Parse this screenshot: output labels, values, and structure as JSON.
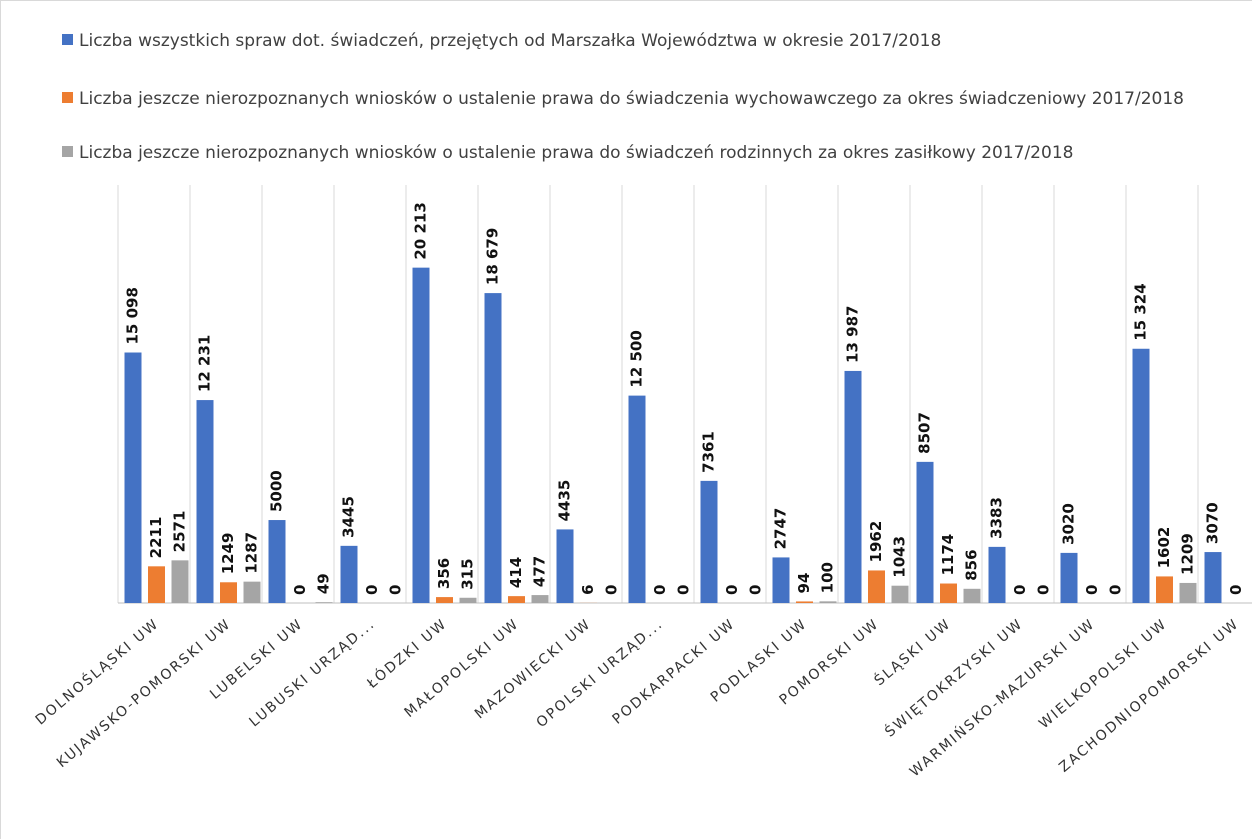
{
  "chart_data": {
    "type": "bar",
    "categories": [
      "DOLNOŚLĄSKI UW",
      "KUJAWSKO-POMORSKI UW",
      "LUBELSKI UW",
      "LUBUSKI URZĄD...",
      "ŁÓDZKI UW",
      "MAŁOPOLSKI UW",
      "MAZOWIECKI UW",
      "OPOLSKI URZĄD...",
      "PODKARPACKI UW",
      "PODLASKI UW",
      "POMORSKI UW",
      "ŚLĄSKI UW",
      "ŚWIĘTOKRZYSKI UW",
      "WARMIŃSKO-MAZURSKI UW",
      "WIELKOPOLSKI UW",
      "ZACHODNIOPOMORSKI UW"
    ],
    "series": [
      {
        "name": "Liczba wszystkich spraw dot. świadczeń, przejętych od Marszałka Województwa w okresie 2017/2018",
        "color": "#4472c4",
        "values": [
          15098,
          12231,
          5000,
          3445,
          20213,
          18679,
          4435,
          12500,
          7361,
          2747,
          13987,
          8507,
          3383,
          3020,
          15324,
          3070
        ],
        "value_labels": [
          "15 098",
          "12 231",
          "5000",
          "3445",
          "20 213",
          "18 679",
          "4435",
          "12 500",
          "7361",
          "2747",
          "13 987",
          "8507",
          "3383",
          "3020",
          "15 324",
          "3070"
        ]
      },
      {
        "name": "Liczba jeszcze nierozpoznanych wniosków o ustalenie prawa do świadczenia wychowawczego za okres świadczeniowy 2017/2018",
        "color": "#ed7d31",
        "values": [
          2211,
          1249,
          0,
          0,
          356,
          414,
          6,
          0,
          0,
          94,
          1962,
          1174,
          0,
          0,
          1602,
          0
        ]
      },
      {
        "name": "Liczba jeszcze nierozpoznanych wniosków o ustalenie prawa do świadczeń rodzinnych za okres zasiłkowy 2017/2018",
        "color": "#a5a5a5",
        "values": [
          2571,
          1287,
          49,
          0,
          315,
          477,
          0,
          0,
          0,
          100,
          1043,
          856,
          0,
          0,
          1209,
          0
        ]
      }
    ],
    "ylim": [
      0,
      22000
    ]
  }
}
